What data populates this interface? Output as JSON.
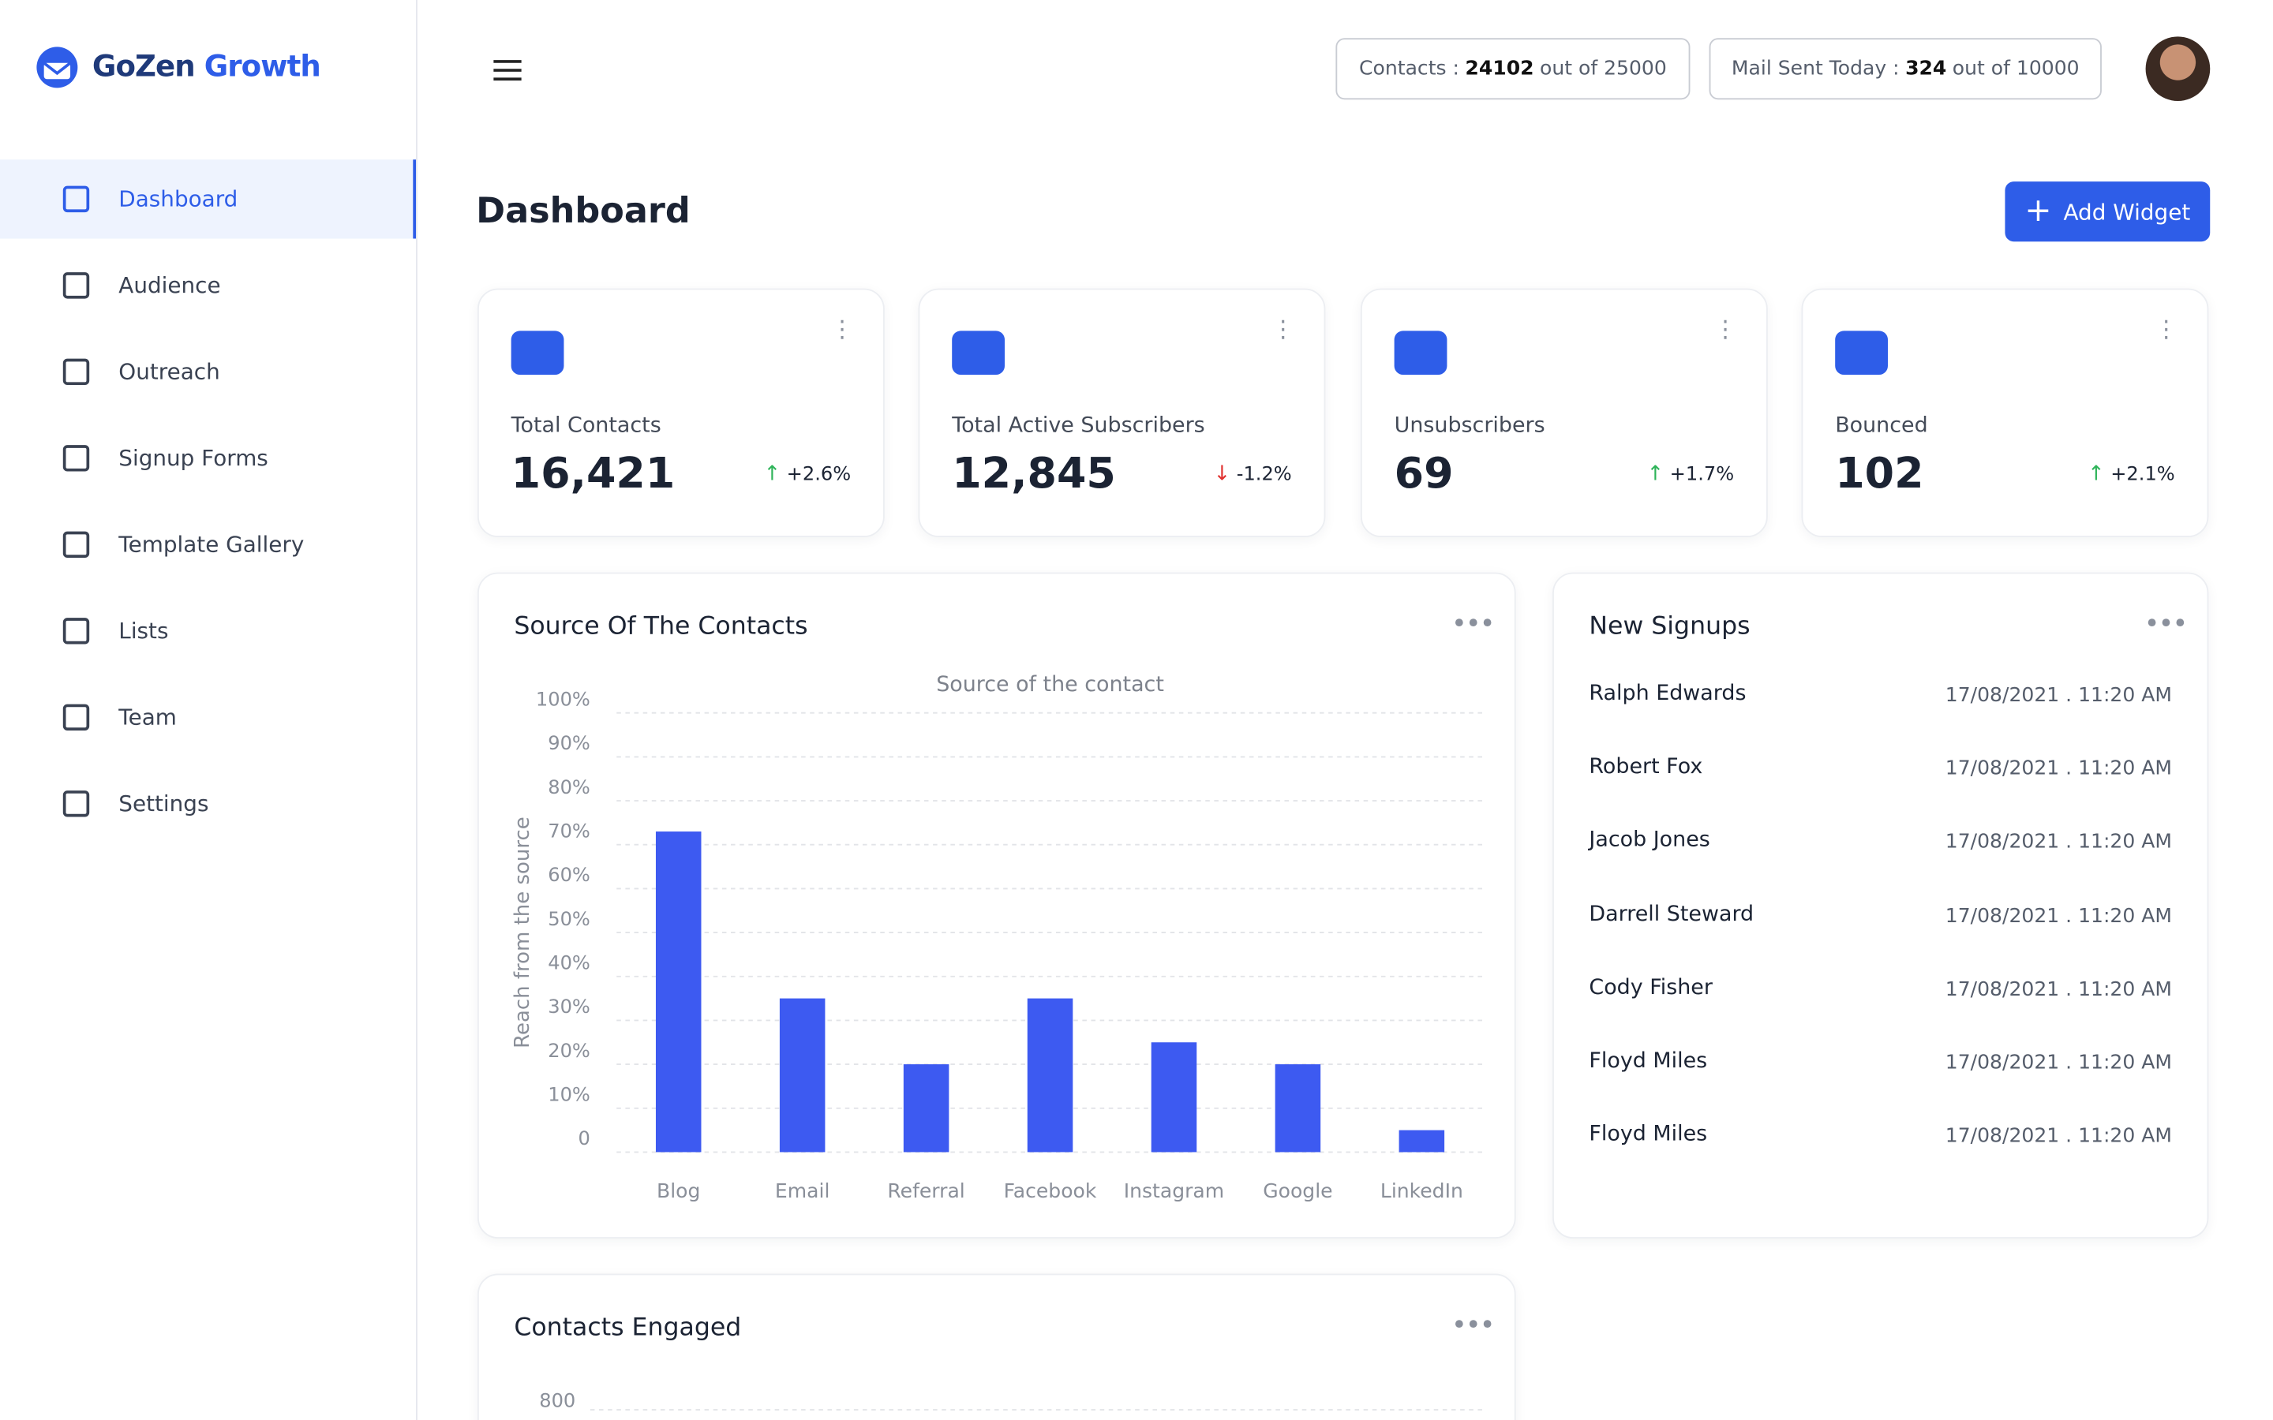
{
  "brand": {
    "name_part1": "GoZen",
    "name_part2": "Growth"
  },
  "nav": [
    "Dashboard",
    "Audience",
    "Outreach",
    "Signup Forms",
    "Template Gallery",
    "Lists",
    "Team",
    "Settings"
  ],
  "header": {
    "contacts": {
      "label": "Contacts :",
      "value": "24102",
      "suffix": "out of 25000"
    },
    "mail": {
      "label": "Mail Sent Today :",
      "value": "324",
      "suffix": "out of 10000"
    }
  },
  "page": {
    "title": "Dashboard",
    "add_button": "Add Widget"
  },
  "stats": [
    {
      "label": "Total Contacts",
      "value": "16,421",
      "delta": "+2.6%",
      "trend": "up"
    },
    {
      "label": "Total Active Subscribers",
      "value": "12,845",
      "delta": "-1.2%",
      "trend": "down"
    },
    {
      "label": "Unsubscribers",
      "value": "69",
      "delta": "+1.7%",
      "trend": "up"
    },
    {
      "label": "Bounced",
      "value": "102",
      "delta": "+2.1%",
      "trend": "up"
    }
  ],
  "chart_data": {
    "type": "bar",
    "card_title": "Source Of The Contacts",
    "title": "Source of the contact",
    "y_label": "Reach from the source",
    "categories": [
      "Blog",
      "Email",
      "Referral",
      "Facebook",
      "Instagram",
      "Google",
      "LinkedIn"
    ],
    "values": [
      73,
      35,
      20,
      35,
      25,
      20,
      5
    ],
    "color": "#3d5af1",
    "ylim": [
      0,
      100
    ],
    "yticks": [
      0,
      {
        "value": 10,
        "label": "10%"
      },
      {
        "value": 20,
        "label": "20%"
      },
      {
        "value": 30,
        "label": "30%"
      },
      {
        "value": 40,
        "label": "40%"
      },
      {
        "value": 50,
        "label": "50%"
      },
      {
        "value": 60,
        "label": "60%"
      },
      {
        "value": 70,
        "label": "70%"
      },
      {
        "value": 80,
        "label": "80%"
      },
      {
        "value": 90,
        "label": "90%"
      },
      {
        "value": 100,
        "label": "100%"
      }
    ],
    "grid": true
  },
  "signups": {
    "title": "New Signups",
    "rows": [
      [
        "Ralph Edwards",
        "17/08/2021 . 11:20 AM"
      ],
      [
        "Robert Fox",
        "17/08/2021 . 11:20 AM"
      ],
      [
        "Jacob Jones",
        "17/08/2021 . 11:20 AM"
      ],
      [
        "Darrell Steward",
        "17/08/2021 . 11:20 AM"
      ],
      [
        "Cody Fisher",
        "17/08/2021 . 11:20 AM"
      ],
      [
        "Floyd Miles",
        "17/08/2021 . 11:20 AM"
      ],
      [
        "Floyd Miles",
        "17/08/2021 . 11:20 AM"
      ]
    ]
  },
  "engaged": {
    "title": "Contacts Engaged",
    "yticks": [
      800
    ]
  }
}
